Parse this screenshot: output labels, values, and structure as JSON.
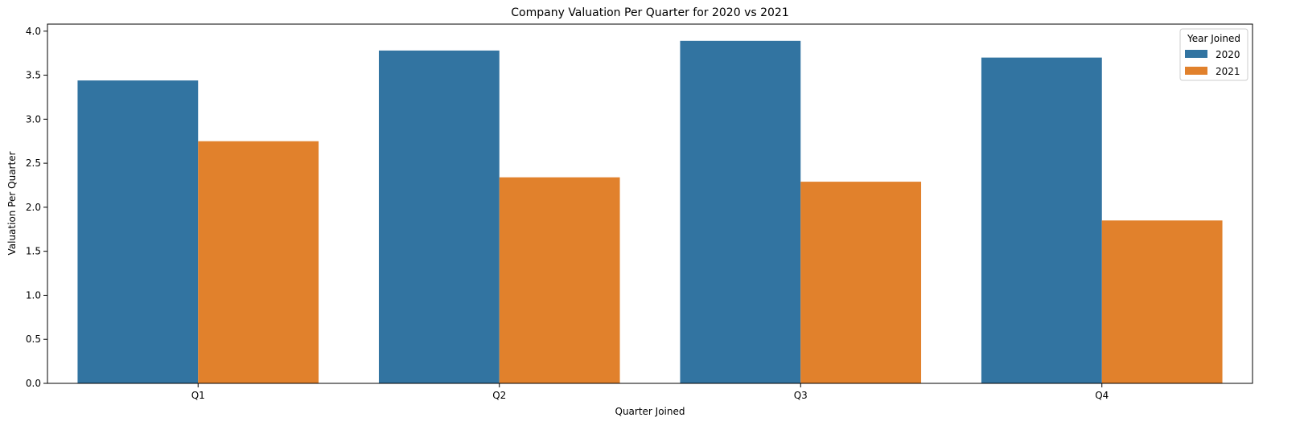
{
  "chart_data": {
    "type": "bar",
    "title": "Company Valuation Per Quarter for 2020 vs 2021",
    "xlabel": "Quarter Joined",
    "ylabel": "Valuation Per Quarter",
    "categories": [
      "Q1",
      "Q2",
      "Q3",
      "Q4"
    ],
    "series": [
      {
        "name": "2020",
        "values": [
          3.44,
          3.78,
          3.89,
          3.7
        ],
        "color": "#3274a1"
      },
      {
        "name": "2021",
        "values": [
          2.75,
          2.34,
          2.29,
          1.85
        ],
        "color": "#e1812c"
      }
    ],
    "ylim": [
      0,
      4.08
    ],
    "yticks": [
      "0.0",
      "0.5",
      "1.0",
      "1.5",
      "2.0",
      "2.5",
      "3.0",
      "3.5",
      "4.0"
    ],
    "grid": false,
    "legend": {
      "title": "Year Joined",
      "placement": "top-right"
    }
  }
}
